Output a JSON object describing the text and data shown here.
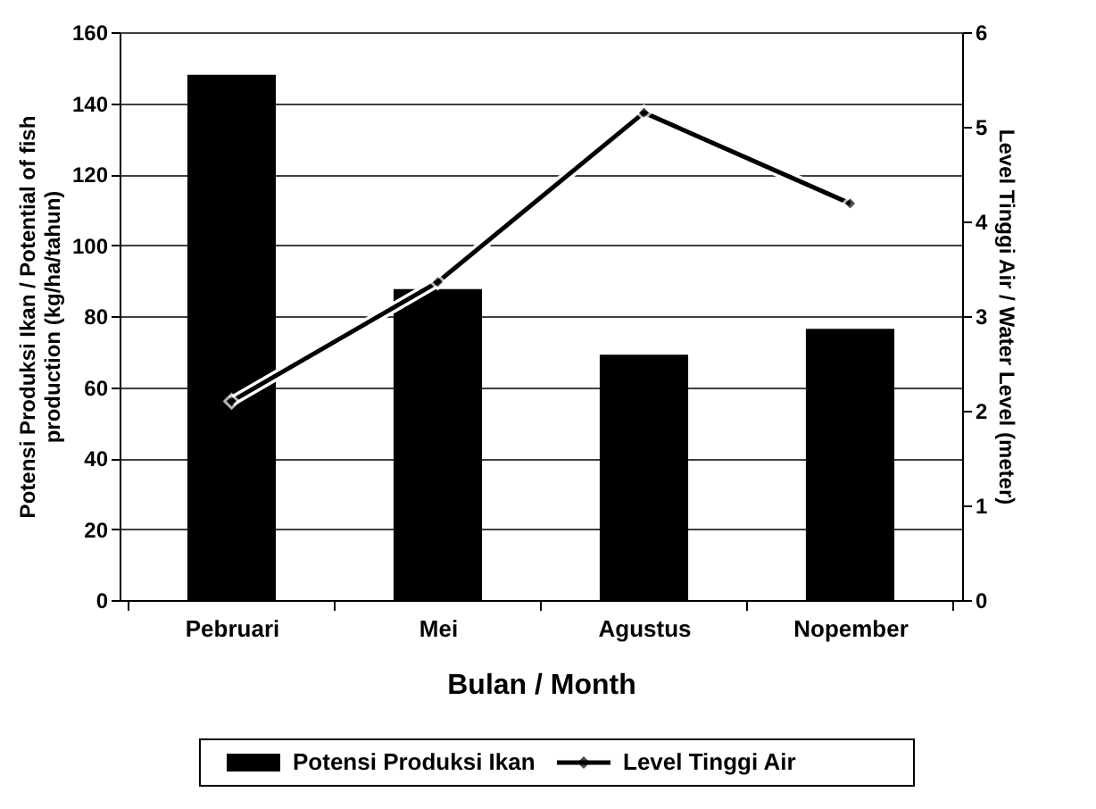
{
  "chart_data": {
    "type": "bar",
    "categories": [
      "Pebruari",
      "Mei",
      "Agustus",
      "Nopember"
    ],
    "series": [
      {
        "name": "Potensi Produksi Ikan",
        "color": "#000000",
        "values": [
          148,
          87.6,
          69.1,
          76.4
        ]
      },
      {
        "name": "Level Tinggi Air",
        "type": "line",
        "axis": "y2",
        "color": "#000000",
        "marker": "diamond",
        "values": [
          2.1,
          3.36,
          5.15,
          4.19
        ]
      }
    ],
    "xlabel": "Bulan / Month",
    "ylabel": "Potensi Produksi Ikan / Potential of fish production (kg/ha/tahun)",
    "y2label": "Level Tinggi Air / Water Level (meter)",
    "ylim": [
      0,
      160
    ],
    "yticks": [
      0,
      20,
      40,
      60,
      80,
      100,
      120,
      140,
      160
    ],
    "y2lim": [
      0,
      6
    ],
    "y2ticks": [
      0,
      1,
      2,
      3,
      4,
      5,
      6
    ],
    "grid": "y",
    "legend": "bottom"
  }
}
